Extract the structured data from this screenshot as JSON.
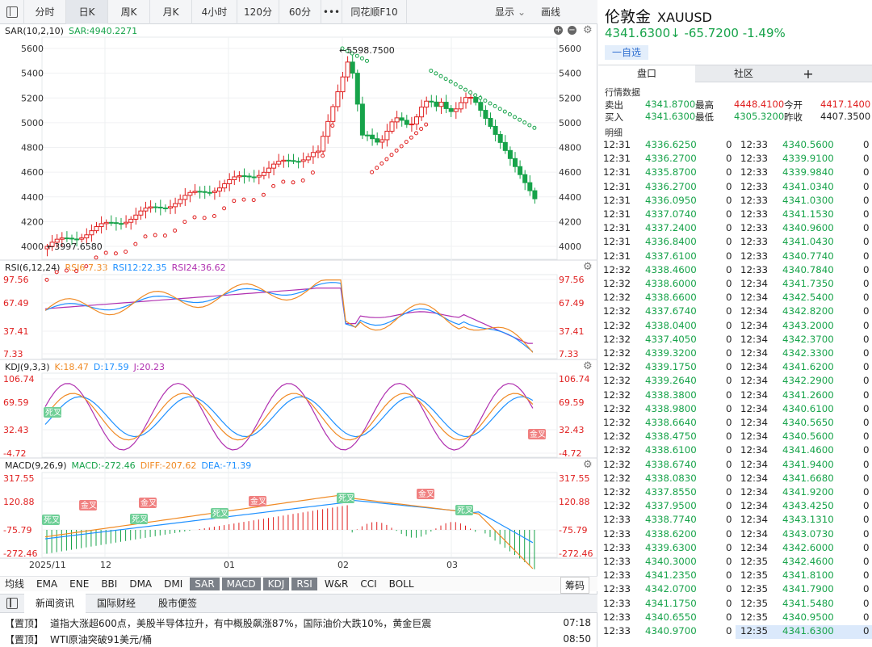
{
  "toolbar": {
    "tabs": [
      "分时",
      "日K",
      "周K",
      "月K",
      "4小时",
      "120分",
      "60分"
    ],
    "active": 1,
    "more": "•••",
    "f10": "同花顺F10",
    "display": "显示",
    "draw": "画线"
  },
  "price_levels": [
    "5600",
    "5400",
    "5200",
    "5000",
    "4800",
    "4600",
    "4400",
    "4200",
    "4000"
  ],
  "main": {
    "label": "SAR(10,2,10)",
    "sar": "SAR:4940.2271",
    "high_label": "5598.7500",
    "low_label": "3997.6580"
  },
  "rsi": {
    "label": "RSI(6,12,24)",
    "rsi6": "RSI6:7.33",
    "rsi12": "RSI12:22.35",
    "rsi24": "RSI24:36.62",
    "levels": [
      "97.56",
      "67.49",
      "37.41",
      "7.33"
    ]
  },
  "kdj": {
    "label": "KDJ(9,3,3)",
    "k": "K:18.47",
    "d": "D:17.59",
    "j": "J:20.23",
    "levels": [
      "106.74",
      "69.59",
      "32.43",
      "-4.72"
    ],
    "marks": [
      "死叉",
      "金叉"
    ]
  },
  "macd": {
    "label": "MACD(9,26,9)",
    "macd": "MACD:-272.46",
    "diff": "DIFF:-207.62",
    "dea": "DEA:-71.39",
    "levels": [
      "317.55",
      "120.88",
      "-75.79",
      "-272.46"
    ],
    "marks": [
      "死叉",
      "金叉",
      "金叉",
      "死叉",
      "死叉",
      "金叉",
      "死叉"
    ]
  },
  "dates": [
    "2025/11",
    "12",
    "01",
    "02",
    "03"
  ],
  "indicators": [
    "均线",
    "EMA",
    "ENE",
    "BBI",
    "DMA",
    "DMI",
    "SAR",
    "MACD",
    "KDJ",
    "RSI",
    "W&R",
    "CCI",
    "BOLL"
  ],
  "indicators_on": [
    "SAR",
    "MACD",
    "KDJ",
    "RSI"
  ],
  "chips": "筹码",
  "news_tabs": [
    "新闻资讯",
    "国际财经",
    "股市便签"
  ],
  "news": [
    {
      "tag": "【置顶】",
      "text": "道指大涨超600点，美股半导体拉升，有中概股飙涨87%，国际油价大跌10%，黄金巨震",
      "time": "07:18"
    },
    {
      "tag": "【置顶】",
      "text": "WTI原油突破91美元/桶",
      "time": "08:50"
    }
  ],
  "quote": {
    "name": "伦敦金",
    "code": "XAUUSD",
    "last": "4341.6300↓",
    "change": "-65.7200",
    "pct": "-1.49%",
    "watch": "一自选"
  },
  "right_tabs": [
    "盘口",
    "社区",
    "+"
  ],
  "section_quote": "行情数据",
  "section_detail": "明细",
  "quote_rows": [
    {
      "l1": "卖出",
      "v1": "4341.8700",
      "l2": "最高",
      "v2": "4448.4100",
      "l3": "今开",
      "v3": "4417.1400"
    },
    {
      "l1": "买入",
      "v1": "4341.6300",
      "l2": "最低",
      "v2": "4305.3200",
      "l3": "昨收",
      "v3": "4407.3500"
    }
  ],
  "ticks_left": [
    [
      "12:31",
      "4336.6250",
      "0"
    ],
    [
      "12:31",
      "4336.2700",
      "0"
    ],
    [
      "12:31",
      "4335.8700",
      "0"
    ],
    [
      "12:31",
      "4336.2700",
      "0"
    ],
    [
      "12:31",
      "4336.0950",
      "0"
    ],
    [
      "12:31",
      "4337.0740",
      "0"
    ],
    [
      "12:31",
      "4337.2400",
      "0"
    ],
    [
      "12:31",
      "4336.8400",
      "0"
    ],
    [
      "12:31",
      "4337.6100",
      "0"
    ],
    [
      "12:32",
      "4338.4600",
      "0"
    ],
    [
      "12:32",
      "4338.6000",
      "0"
    ],
    [
      "12:32",
      "4338.6600",
      "0"
    ],
    [
      "12:32",
      "4337.6740",
      "0"
    ],
    [
      "12:32",
      "4338.0400",
      "0"
    ],
    [
      "12:32",
      "4337.4050",
      "0"
    ],
    [
      "12:32",
      "4339.3200",
      "0"
    ],
    [
      "12:32",
      "4339.1750",
      "0"
    ],
    [
      "12:32",
      "4339.2640",
      "0"
    ],
    [
      "12:32",
      "4338.3800",
      "0"
    ],
    [
      "12:32",
      "4338.9800",
      "0"
    ],
    [
      "12:32",
      "4338.6640",
      "0"
    ],
    [
      "12:32",
      "4338.4750",
      "0"
    ],
    [
      "12:32",
      "4338.6100",
      "0"
    ],
    [
      "12:32",
      "4338.6740",
      "0"
    ],
    [
      "12:32",
      "4338.0830",
      "0"
    ],
    [
      "12:32",
      "4337.8550",
      "0"
    ],
    [
      "12:32",
      "4337.9500",
      "0"
    ],
    [
      "12:33",
      "4338.7740",
      "0"
    ],
    [
      "12:33",
      "4338.6200",
      "0"
    ],
    [
      "12:33",
      "4339.6300",
      "0"
    ],
    [
      "12:33",
      "4340.3000",
      "0"
    ],
    [
      "12:33",
      "4341.2350",
      "0"
    ],
    [
      "12:33",
      "4342.0700",
      "0"
    ],
    [
      "12:33",
      "4341.1750",
      "0"
    ],
    [
      "12:33",
      "4340.6550",
      "0"
    ],
    [
      "12:33",
      "4340.9700",
      "0"
    ]
  ],
  "ticks_right": [
    [
      "12:33",
      "4340.5600",
      "0"
    ],
    [
      "12:33",
      "4339.9100",
      "0"
    ],
    [
      "12:33",
      "4339.9840",
      "0"
    ],
    [
      "12:33",
      "4341.0340",
      "0"
    ],
    [
      "12:33",
      "4341.0300",
      "0"
    ],
    [
      "12:33",
      "4341.1530",
      "0"
    ],
    [
      "12:33",
      "4340.9600",
      "0"
    ],
    [
      "12:33",
      "4341.0430",
      "0"
    ],
    [
      "12:33",
      "4340.7740",
      "0"
    ],
    [
      "12:33",
      "4340.7840",
      "0"
    ],
    [
      "12:34",
      "4341.7350",
      "0"
    ],
    [
      "12:34",
      "4342.5400",
      "0"
    ],
    [
      "12:34",
      "4342.8200",
      "0"
    ],
    [
      "12:34",
      "4343.2000",
      "0"
    ],
    [
      "12:34",
      "4342.3700",
      "0"
    ],
    [
      "12:34",
      "4342.3300",
      "0"
    ],
    [
      "12:34",
      "4341.6200",
      "0"
    ],
    [
      "12:34",
      "4342.2900",
      "0"
    ],
    [
      "12:34",
      "4341.2600",
      "0"
    ],
    [
      "12:34",
      "4340.6100",
      "0"
    ],
    [
      "12:34",
      "4340.5650",
      "0"
    ],
    [
      "12:34",
      "4340.5600",
      "0"
    ],
    [
      "12:34",
      "4341.4600",
      "0"
    ],
    [
      "12:34",
      "4341.9400",
      "0"
    ],
    [
      "12:34",
      "4341.6680",
      "0"
    ],
    [
      "12:34",
      "4341.9200",
      "0"
    ],
    [
      "12:34",
      "4343.4250",
      "0"
    ],
    [
      "12:34",
      "4343.1310",
      "0"
    ],
    [
      "12:34",
      "4343.0730",
      "0"
    ],
    [
      "12:34",
      "4342.6000",
      "0"
    ],
    [
      "12:35",
      "4342.4600",
      "0"
    ],
    [
      "12:35",
      "4341.8100",
      "0"
    ],
    [
      "12:35",
      "4341.7900",
      "0"
    ],
    [
      "12:35",
      "4341.5480",
      "0"
    ],
    [
      "12:35",
      "4340.9500",
      "0"
    ],
    [
      "12:35",
      "4341.6300",
      "0"
    ]
  ],
  "colors": {
    "up": "#e02020",
    "down": "#17a34a",
    "rsi6": "#f08a24",
    "rsi12": "#1e90ff",
    "rsi24": "#b030b0",
    "sar_up": "#e02020",
    "sar_down": "#17a34a"
  }
}
